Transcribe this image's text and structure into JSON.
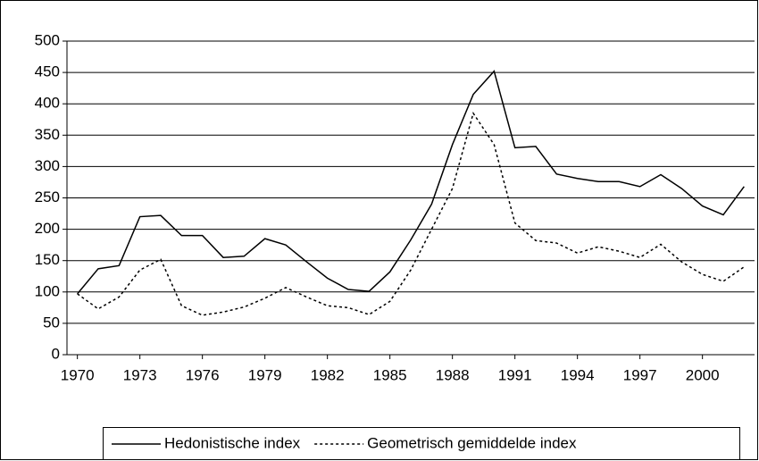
{
  "chart_data": {
    "type": "line",
    "x": [
      1970,
      1971,
      1972,
      1973,
      1974,
      1975,
      1976,
      1977,
      1978,
      1979,
      1980,
      1981,
      1982,
      1983,
      1984,
      1985,
      1986,
      1987,
      1988,
      1989,
      1990,
      1991,
      1992,
      1993,
      1994,
      1995,
      1996,
      1997,
      1998,
      1999,
      2000,
      2001,
      2002
    ],
    "xlim": [
      1969.5,
      2002.5
    ],
    "xticks": [
      1970,
      1973,
      1976,
      1979,
      1982,
      1985,
      1988,
      1991,
      1994,
      1997,
      2000
    ],
    "ylim": [
      0,
      500
    ],
    "yticks": [
      0,
      50,
      100,
      150,
      200,
      250,
      300,
      350,
      400,
      450,
      500
    ],
    "grid": true,
    "legend": "bottom",
    "series": [
      {
        "name": "Hedonistische index",
        "color": "#000000",
        "dash": "solid",
        "values": [
          97,
          137,
          142,
          220,
          222,
          190,
          190,
          155,
          157,
          185,
          175,
          148,
          122,
          104,
          101,
          132,
          183,
          240,
          335,
          415,
          452,
          330,
          332,
          288,
          281,
          276,
          276,
          268,
          287,
          265,
          237,
          223,
          268
        ]
      },
      {
        "name": "Geometrisch gemiddelde index",
        "color": "#000000",
        "dash": "dotted",
        "values": [
          97,
          73,
          92,
          135,
          152,
          78,
          63,
          68,
          76,
          90,
          107,
          92,
          78,
          75,
          64,
          85,
          135,
          200,
          265,
          385,
          335,
          210,
          182,
          178,
          162,
          172,
          165,
          155,
          176,
          148,
          128,
          117,
          140
        ]
      }
    ]
  }
}
